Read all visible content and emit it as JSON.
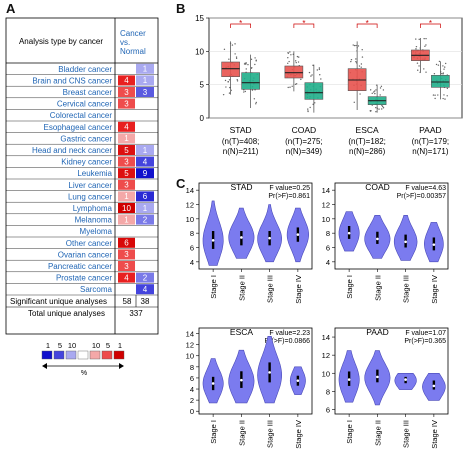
{
  "panels": {
    "a": "A",
    "b": "B",
    "c": "C"
  },
  "table_a": {
    "header_left": "Analysis type by cancer",
    "header_right": [
      "Cancer",
      "vs.",
      "Normal"
    ],
    "rows": [
      {
        "name": "Bladder cancer",
        "up": "",
        "down": "1",
        "up_color": "#ffffff",
        "down_color": "#a9a9f0"
      },
      {
        "name": "Brain and CNS cancer",
        "up": "4",
        "down": "1",
        "up_color": "#e82020",
        "down_color": "#a9a9f0"
      },
      {
        "name": "Breast cancer",
        "up": "3",
        "down": "3",
        "up_color": "#ee4c4c",
        "down_color": "#5a5ae0"
      },
      {
        "name": "Cervical cancer",
        "up": "3",
        "down": "",
        "up_color": "#ee4c4c",
        "down_color": "#ffffff"
      },
      {
        "name": "Colorectal cancer",
        "up": "",
        "down": "",
        "up_color": "#ffffff",
        "down_color": "#ffffff"
      },
      {
        "name": "Esophageal cancer",
        "up": "4",
        "down": "",
        "up_color": "#e82020",
        "down_color": "#ffffff"
      },
      {
        "name": "Gastric cancer",
        "up": "1",
        "down": "",
        "up_color": "#f4a8a8",
        "down_color": "#ffffff"
      },
      {
        "name": "Head and neck cancer",
        "up": "5",
        "down": "1",
        "up_color": "#dd1010",
        "down_color": "#a9a9f0"
      },
      {
        "name": "Kidney cancer",
        "up": "3",
        "down": "4",
        "up_color": "#ee4c4c",
        "down_color": "#4444dd"
      },
      {
        "name": "Leukemia",
        "up": "5",
        "down": "9",
        "up_color": "#dd1010",
        "down_color": "#1010cc"
      },
      {
        "name": "Liver cancer",
        "up": "3",
        "down": "",
        "up_color": "#ee4c4c",
        "down_color": "#ffffff"
      },
      {
        "name": "Lung cancer",
        "up": "1",
        "down": "6",
        "up_color": "#f4a8a8",
        "down_color": "#2a2ad4"
      },
      {
        "name": "Lymphoma",
        "up": "10",
        "down": "1",
        "up_color": "#d00000",
        "down_color": "#a9a9f0"
      },
      {
        "name": "Melanoma",
        "up": "1",
        "down": "2",
        "up_color": "#f4a8a8",
        "down_color": "#7a7ae8"
      },
      {
        "name": "Myeloma",
        "up": "",
        "down": "",
        "up_color": "#ffffff",
        "down_color": "#ffffff"
      },
      {
        "name": "Other cancer",
        "up": "6",
        "down": "",
        "up_color": "#d80808",
        "down_color": "#ffffff"
      },
      {
        "name": "Ovarian cancer",
        "up": "3",
        "down": "",
        "up_color": "#ee4c4c",
        "down_color": "#ffffff"
      },
      {
        "name": "Pancreatic cancer",
        "up": "3",
        "down": "",
        "up_color": "#ee4c4c",
        "down_color": "#ffffff"
      },
      {
        "name": "Prostate cancer",
        "up": "4",
        "down": "2",
        "up_color": "#e82020",
        "down_color": "#7a7ae8"
      },
      {
        "name": "Sarcoma",
        "up": "",
        "down": "4",
        "up_color": "#ffffff",
        "down_color": "#4444dd"
      }
    ],
    "significant": {
      "label": "Significant unique analyses",
      "up": "58",
      "down": "38"
    },
    "total": {
      "label": "Total unique analyses",
      "value": "337"
    },
    "legend": {
      "labels": [
        "1",
        "5",
        "10",
        "10",
        "5",
        "1"
      ],
      "colors": [
        "#1010cc",
        "#4444dd",
        "#a9a9f0",
        "#ffffff",
        "#f4a8a8",
        "#ee4c4c",
        "#d00000"
      ],
      "unit": "%"
    }
  },
  "chart_data": [
    {
      "type": "box",
      "panel": "B",
      "ylim": [
        0,
        15
      ],
      "yticks": [
        "0",
        "5",
        "10",
        "15"
      ],
      "significance_marker": "*",
      "series_colors": {
        "tumor": "#e8524e",
        "normal": "#1fae8a"
      },
      "groups": [
        {
          "name": "STAD",
          "n_label": "(n(T)=408;",
          "n2_label": "n(N)=211)",
          "tumor": {
            "q1": 6.2,
            "median": 7.4,
            "q3": 8.4,
            "whisker_low": 3.5,
            "whisker_high": 11.5
          },
          "normal": {
            "q1": 4.3,
            "median": 5.3,
            "q3": 6.8,
            "whisker_low": 1.5,
            "whisker_high": 9.5
          }
        },
        {
          "name": "COAD",
          "n_label": "(n(T)=275;",
          "n2_label": "n(N)=349)",
          "tumor": {
            "q1": 6.0,
            "median": 6.8,
            "q3": 7.8,
            "whisker_low": 4.0,
            "whisker_high": 10.0
          },
          "normal": {
            "q1": 2.8,
            "median": 3.8,
            "q3": 5.3,
            "whisker_low": 0.8,
            "whisker_high": 8.0
          }
        },
        {
          "name": "ESCA",
          "n_label": "(n(T)=182;",
          "n2_label": "n(N)=286)",
          "tumor": {
            "q1": 4.1,
            "median": 5.7,
            "q3": 7.4,
            "whisker_low": 1.2,
            "whisker_high": 11.5
          },
          "normal": {
            "q1": 2.0,
            "median": 2.6,
            "q3": 3.2,
            "whisker_low": 0.8,
            "whisker_high": 5.0
          }
        },
        {
          "name": "PAAD",
          "n_label": "(n(T)=179;",
          "n2_label": "n(N)=171)",
          "tumor": {
            "q1": 8.6,
            "median": 9.4,
            "q3": 10.2,
            "whisker_low": 6.8,
            "whisker_high": 12.0
          },
          "normal": {
            "q1": 4.6,
            "median": 5.4,
            "q3": 6.4,
            "whisker_low": 2.8,
            "whisker_high": 8.5
          }
        }
      ]
    },
    {
      "type": "violin",
      "panel": "C",
      "categories": [
        "Stage I",
        "Stage II",
        "Stage III",
        "Stage IV"
      ],
      "violin_color": "#7b7bef",
      "plots": [
        {
          "title": "STAD",
          "stat1": "F value=0.25",
          "stat2": "Pr(>F)=0.861",
          "ylim": [
            3,
            15
          ],
          "yticks": [
            4,
            6,
            8,
            10,
            12,
            14
          ],
          "violins": [
            {
              "median": 7.0,
              "q1": 5.8,
              "q3": 8.3,
              "min": 3.5,
              "max": 12.5,
              "mode": 7.0,
              "width": 0.8
            },
            {
              "median": 7.4,
              "q1": 6.3,
              "q3": 8.3,
              "min": 4.5,
              "max": 11.5,
              "mode": 7.4,
              "width": 1.0
            },
            {
              "median": 7.3,
              "q1": 6.3,
              "q3": 8.3,
              "min": 4.0,
              "max": 12.0,
              "mode": 7.2,
              "width": 0.95
            },
            {
              "median": 7.8,
              "q1": 6.8,
              "q3": 8.8,
              "min": 4.0,
              "max": 11.5,
              "mode": 7.8,
              "width": 0.85
            }
          ]
        },
        {
          "title": "COAD",
          "stat1": "F value=4.63",
          "stat2": "Pr(>F)=0.00357",
          "ylim": [
            3,
            15
          ],
          "yticks": [
            4,
            6,
            8,
            10,
            12,
            14
          ],
          "violins": [
            {
              "median": 8.0,
              "q1": 7.2,
              "q3": 9.0,
              "min": 5.5,
              "max": 11.0,
              "mode": 8.0,
              "width": 0.8
            },
            {
              "median": 7.2,
              "q1": 6.5,
              "q3": 8.2,
              "min": 4.5,
              "max": 10.5,
              "mode": 7.2,
              "width": 1.0
            },
            {
              "median": 6.8,
              "q1": 6.0,
              "q3": 7.8,
              "min": 4.2,
              "max": 10.5,
              "mode": 6.8,
              "width": 0.9
            },
            {
              "median": 6.4,
              "q1": 5.6,
              "q3": 7.4,
              "min": 4.0,
              "max": 9.5,
              "mode": 6.5,
              "width": 0.75
            }
          ]
        },
        {
          "title": "ESCA",
          "stat1": "F value=2.23",
          "stat2": "Pr(>F)=0.0866",
          "ylim": [
            -0.5,
            15
          ],
          "yticks": [
            0,
            2,
            4,
            6,
            8,
            10,
            12,
            14
          ],
          "violins": [
            {
              "median": 5.0,
              "q1": 3.8,
              "q3": 6.2,
              "min": 1.5,
              "max": 9.5,
              "mode": 5.0,
              "width": 0.8
            },
            {
              "median": 5.6,
              "q1": 4.2,
              "q3": 7.2,
              "min": 1.5,
              "max": 11.0,
              "mode": 5.4,
              "width": 1.0
            },
            {
              "median": 7.0,
              "q1": 5.2,
              "q3": 8.8,
              "min": 1.5,
              "max": 13.5,
              "mode": 6.5,
              "width": 0.95
            },
            {
              "median": 5.5,
              "q1": 4.6,
              "q3": 6.4,
              "min": 3.0,
              "max": 8.0,
              "mode": 5.5,
              "width": 0.6
            }
          ]
        },
        {
          "title": "PAAD",
          "stat1": "F value=1.07",
          "stat2": "Pr(>F)=0.365",
          "ylim": [
            5.5,
            15
          ],
          "yticks": [
            6,
            8,
            10,
            12,
            14
          ],
          "violins": [
            {
              "median": 9.3,
              "q1": 8.6,
              "q3": 10.2,
              "min": 6.8,
              "max": 12.5,
              "mode": 9.3,
              "width": 0.8
            },
            {
              "median": 9.6,
              "q1": 9.0,
              "q3": 10.4,
              "min": 6.5,
              "max": 12.5,
              "mode": 9.5,
              "width": 1.0
            },
            {
              "median": 9.3,
              "q1": 8.9,
              "q3": 9.6,
              "min": 8.2,
              "max": 10.0,
              "mode": 9.2,
              "width": 0.85
            },
            {
              "median": 8.6,
              "q1": 8.2,
              "q3": 9.2,
              "min": 7.0,
              "max": 10.0,
              "mode": 8.5,
              "width": 0.9
            }
          ]
        }
      ]
    }
  ]
}
